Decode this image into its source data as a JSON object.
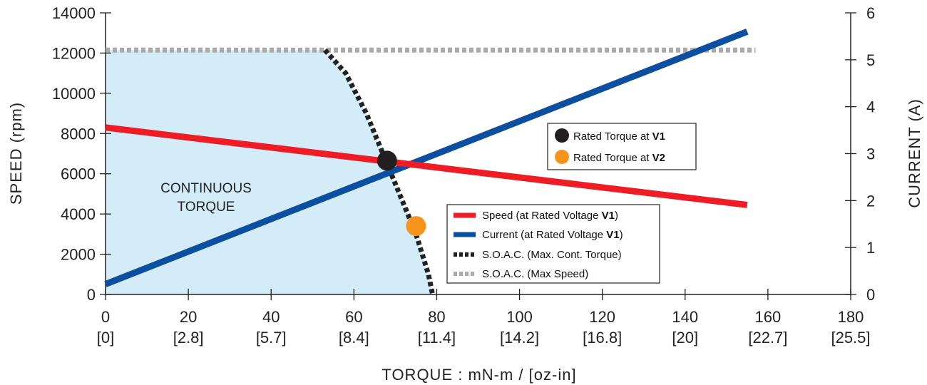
{
  "chart_data": {
    "type": "line",
    "xlabel": "TORQUE : mN-m / [oz-in]",
    "ylabel": "SPEED (rpm)",
    "y2label": "CURRENT (A)",
    "xlim": [
      0,
      180
    ],
    "ylim": [
      0,
      14000
    ],
    "y2lim": [
      0,
      6
    ],
    "x_ticks": [
      0,
      20,
      40,
      60,
      80,
      100,
      120,
      140,
      160,
      180
    ],
    "x_ticks_secondary": [
      "[0]",
      "[2.8]",
      "[5.7]",
      "[8.4]",
      "[11.4]",
      "[14.2]",
      "[16.8]",
      "[20]",
      "[22.7]",
      "[25.5]"
    ],
    "y_ticks": [
      0,
      2000,
      4000,
      6000,
      8000,
      10000,
      12000,
      14000
    ],
    "y2_ticks": [
      0,
      1,
      2,
      3,
      4,
      5,
      6
    ],
    "grid": false,
    "legend_position": "lower-right",
    "region": {
      "label_lines": [
        "CONTINUOUS",
        "TORQUE"
      ],
      "color": "#d3ecf8",
      "boundary": [
        [
          0,
          12150
        ],
        [
          53,
          12150
        ],
        [
          58,
          11000
        ],
        [
          63,
          9000
        ],
        [
          67,
          7000
        ],
        [
          71,
          5000
        ],
        [
          75,
          3000
        ],
        [
          78,
          1000
        ],
        [
          79,
          0
        ]
      ]
    },
    "series": [
      {
        "name": "Speed (at Rated Voltage ",
        "name_bold": "V1",
        "name_suffix": ")",
        "axis": "left",
        "color": "#ee1c25",
        "style": "solid",
        "x": [
          0,
          155
        ],
        "y": [
          8300,
          4450
        ]
      },
      {
        "name": "Current (at Rated Voltage ",
        "name_bold": "V1",
        "name_suffix": ")",
        "axis": "right",
        "color": "#0c4fa1",
        "style": "solid",
        "x": [
          0,
          155
        ],
        "y": [
          0.22,
          5.6
        ]
      },
      {
        "name": "S.O.A.C. (Max. Cont. Torque)",
        "name_bold": "",
        "name_suffix": "",
        "axis": "left",
        "color": "#222222",
        "style": "dashed",
        "x": [
          53,
          58,
          63,
          67,
          71,
          75,
          78,
          79
        ],
        "y": [
          12150,
          11000,
          9000,
          7000,
          5000,
          3000,
          1000,
          0
        ]
      },
      {
        "name": "S.O.A.C. (Max Speed)",
        "name_bold": "",
        "name_suffix": "",
        "axis": "left",
        "color": "#aaaaaa",
        "style": "dashed",
        "x": [
          0,
          157
        ],
        "y": [
          12150,
          12150
        ]
      }
    ],
    "points": [
      {
        "name": "Rated Torque at ",
        "name_bold": "V1",
        "color": "#231f20",
        "x": 68,
        "y": 6650
      },
      {
        "name": "Rated Torque at ",
        "name_bold": "V2",
        "color": "#f7941d",
        "x": 75,
        "y": 3400
      }
    ]
  }
}
